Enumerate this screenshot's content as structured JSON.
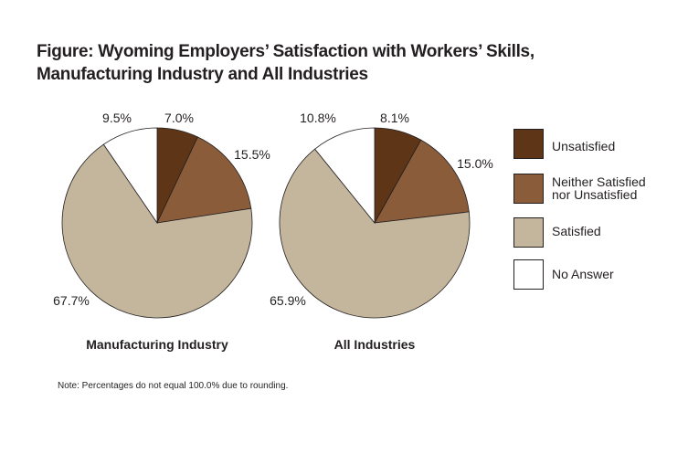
{
  "figure": {
    "title_line1": "Figure: Wyoming Employers’ Satisfaction with Workers’ Skills,",
    "title_line2": "Manufacturing Industry and All Industries",
    "note": "Note: Percentages do not equal 100.0% due to rounding."
  },
  "colors": {
    "Unsatisfied": "#5e3516",
    "Neither Satisfied nor Unsatisfied": "#8b5c3a",
    "Satisfied": "#c4b69d",
    "No Answer": "#ffffff",
    "outline": "#231f20"
  },
  "legend": [
    {
      "label": "Unsatisfied",
      "color": "#5e3516"
    },
    {
      "label": "Neither Satisfied nor Unsatisfied",
      "color": "#8b5c3a"
    },
    {
      "label": "Satisfied",
      "color": "#c4b69d"
    },
    {
      "label": "No Answer",
      "color": "#ffffff"
    }
  ],
  "chart_data": [
    {
      "type": "pie",
      "title": "Manufacturing Industry",
      "categories": [
        "Unsatisfied",
        "Neither Satisfied nor Unsatisfied",
        "Satisfied",
        "No Answer"
      ],
      "values": [
        7.0,
        15.5,
        67.7,
        9.5
      ],
      "labels": [
        "7.0%",
        "15.5%",
        "67.7%",
        "9.5%"
      ],
      "legend_position": "right"
    },
    {
      "type": "pie",
      "title": "All Industries",
      "categories": [
        "Unsatisfied",
        "Neither Satisfied nor Unsatisfied",
        "Satisfied",
        "No Answer"
      ],
      "values": [
        8.1,
        15.0,
        65.9,
        10.8
      ],
      "labels": [
        "8.1%",
        "15.0%",
        "65.9%",
        "10.8%"
      ],
      "legend_position": "right"
    }
  ]
}
